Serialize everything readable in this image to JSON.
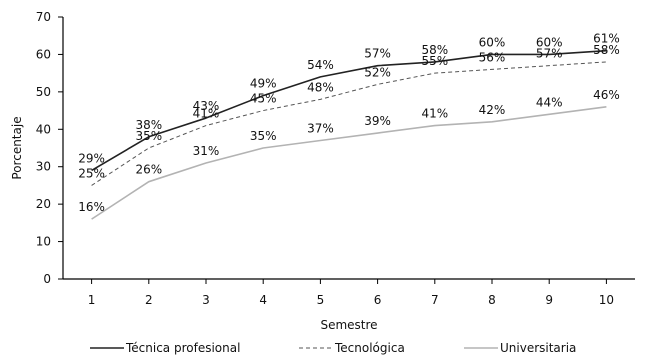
{
  "chart_data": {
    "type": "line",
    "xlabel": "Semestre",
    "ylabel": "Porcentaje",
    "x": [
      1,
      2,
      3,
      4,
      5,
      6,
      7,
      8,
      9,
      10
    ],
    "ylim": [
      0,
      70
    ],
    "yticks": [
      0,
      10,
      20,
      30,
      40,
      50,
      60,
      70
    ],
    "grid": false,
    "legend_position": "bottom",
    "series": [
      {
        "name": "Técnica profesional",
        "style": "solid",
        "color": "#222222",
        "values": [
          29,
          38,
          43,
          49,
          54,
          57,
          58,
          60,
          60,
          61
        ],
        "labels": [
          "29%",
          "38%",
          "43%",
          "49%",
          "54%",
          "57%",
          "58%",
          "60%",
          "60%",
          "61%"
        ]
      },
      {
        "name": "Tecnológica",
        "style": "dashed",
        "color": "#555555",
        "values": [
          25,
          35,
          41,
          45,
          48,
          52,
          55,
          56,
          57,
          58
        ],
        "labels": [
          "25%",
          "35%",
          "41%",
          "45%",
          "48%",
          "52%",
          "55%",
          "56%",
          "57%",
          "58%"
        ]
      },
      {
        "name": "Universitaria",
        "style": "solid",
        "color": "#b3b3b3",
        "values": [
          16,
          26,
          31,
          35,
          37,
          39,
          41,
          42,
          44,
          46
        ],
        "labels": [
          "16%",
          "26%",
          "31%",
          "35%",
          "37%",
          "39%",
          "41%",
          "42%",
          "44%",
          "46%"
        ]
      }
    ]
  }
}
